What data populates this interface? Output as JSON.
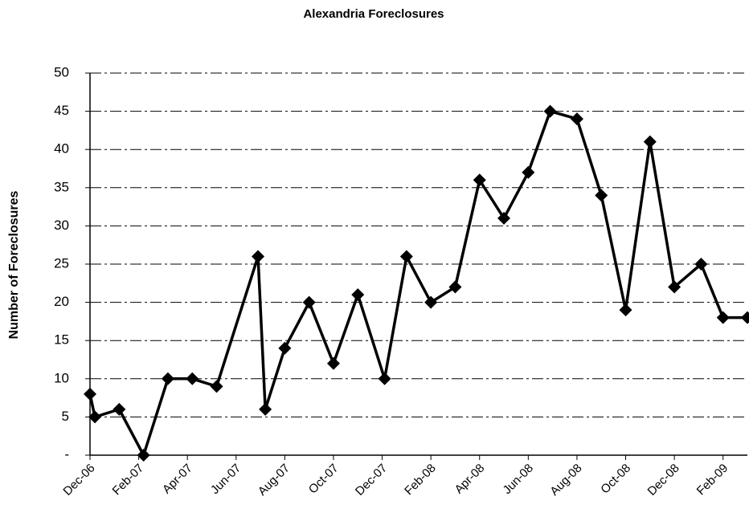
{
  "chart_data": {
    "type": "line",
    "title": "Alexandria Foreclosures",
    "y_label": "Number of Foreclosures",
    "x": [
      0,
      0.2,
      1.2,
      2.2,
      3.2,
      4.2,
      5.2,
      6.9,
      7.2,
      8,
      9,
      10,
      11,
      12.1,
      13,
      14,
      15,
      16,
      17,
      18,
      18.9,
      20,
      21,
      22,
      23,
      24,
      25.1,
      26,
      27
    ],
    "series": [
      {
        "name": "Foreclosures",
        "color": "#000000",
        "values": [
          8,
          5,
          6,
          0,
          10,
          10,
          9,
          26,
          6,
          14,
          20,
          12,
          21,
          10,
          26,
          20,
          22,
          36,
          31,
          37,
          45,
          44,
          34,
          19,
          41,
          22,
          25,
          18,
          18
        ]
      }
    ],
    "xlim": [
      0,
      27
    ],
    "xticks": [
      {
        "value": 0,
        "label": "Dec-06"
      },
      {
        "value": 2,
        "label": "Feb-07"
      },
      {
        "value": 4,
        "label": "Apr-07"
      },
      {
        "value": 6,
        "label": "Jun-07"
      },
      {
        "value": 8,
        "label": "Aug-07"
      },
      {
        "value": 10,
        "label": "Oct-07"
      },
      {
        "value": 12,
        "label": "Dec-07"
      },
      {
        "value": 14,
        "label": "Feb-08"
      },
      {
        "value": 16,
        "label": "Apr-08"
      },
      {
        "value": 18,
        "label": "Jun-08"
      },
      {
        "value": 20,
        "label": "Aug-08"
      },
      {
        "value": 22,
        "label": "Oct-08"
      },
      {
        "value": 24,
        "label": "Dec-08"
      },
      {
        "value": 26,
        "label": "Feb-09"
      }
    ],
    "ylim": [
      0,
      50
    ],
    "yticks": [
      {
        "value": 0,
        "label": "-"
      },
      5,
      10,
      15,
      20,
      25,
      30,
      35,
      40,
      45,
      50
    ],
    "grid": true
  }
}
